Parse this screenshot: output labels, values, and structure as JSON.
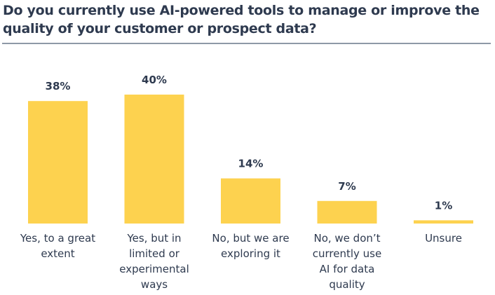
{
  "chart_data": {
    "type": "bar",
    "title": "Do you currently use AI-powered tools to manage or improve the quality of your customer or prospect data?",
    "categories": [
      [
        "Yes, to a great",
        "extent"
      ],
      [
        "Yes, but in",
        "limited or",
        "experimental",
        "ways"
      ],
      [
        "No, but we are",
        "exploring it"
      ],
      [
        "No, we don’t",
        "currently use",
        "AI for data",
        "quality"
      ],
      [
        "Unsure"
      ]
    ],
    "values": [
      38,
      40,
      14,
      7,
      1
    ],
    "value_labels": [
      "38%",
      "40%",
      "14%",
      "7%",
      "1%"
    ],
    "xlabel": "",
    "ylabel": "",
    "ylim": [
      0,
      40
    ],
    "grid": false,
    "bar_color": "#fdd24f"
  }
}
